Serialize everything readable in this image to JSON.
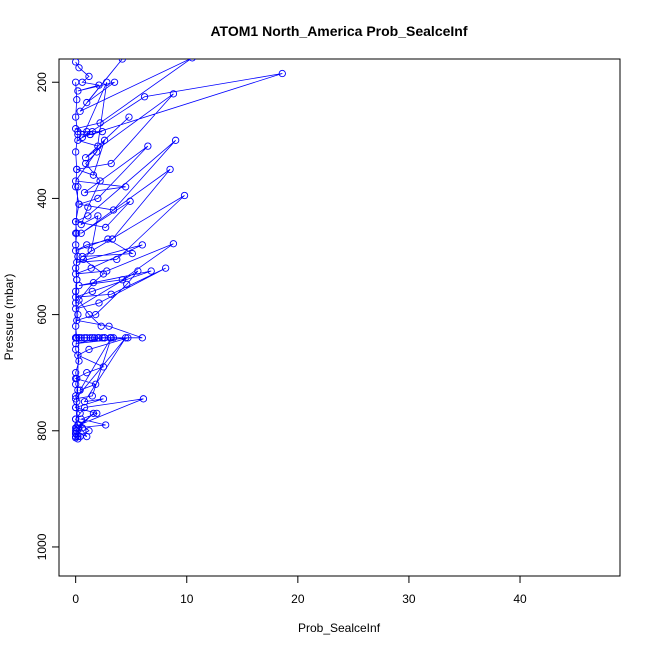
{
  "chart_data": {
    "type": "scatter",
    "title": "ATOM1 North_America Prob_SealceInf",
    "xlabel": "Prob_SealceInf",
    "ylabel": "Pressure (mbar)",
    "xlim": [
      -1.5,
      49
    ],
    "ylim": [
      1050,
      160
    ],
    "y_reversed": true,
    "x_ticks": [
      0,
      10,
      20,
      30,
      40
    ],
    "y_ticks": [
      200,
      400,
      600,
      800,
      1000
    ],
    "grid": false,
    "legend": "none",
    "color": "#0000ff",
    "marker": "open-circle",
    "connected": true,
    "series": [
      {
        "x": [
          0.0,
          0.3,
          1.2,
          0.6,
          2.1,
          0.2,
          3.5,
          1.0,
          4.2,
          0.4,
          10.5,
          2.2,
          0.0,
          1.3,
          18.6,
          6.2,
          0.2,
          2.0,
          4.8,
          0.9,
          8.8,
          3.2,
          0.1,
          1.6,
          2.6,
          0.0,
          4.5,
          0.8,
          6.5,
          2.0,
          0.3,
          3.4,
          9.0,
          1.1,
          0.0,
          2.7,
          4.9,
          0.5,
          8.5,
          3.3,
          1.0,
          0.0,
          2.9,
          5.1,
          0.6,
          9.8,
          3.7,
          0.1,
          6.0,
          1.4,
          0.0,
          2.8,
          8.8,
          4.2,
          0.3,
          6.8,
          1.5,
          0.0,
          3.2,
          8.1,
          2.1,
          0.0,
          5.6,
          4.6,
          1.8,
          0.1,
          3.0,
          6.0,
          2.4,
          0.0,
          4.7,
          1.2,
          0.2,
          2.5,
          1.0,
          0.0,
          1.8,
          0.4,
          3.2,
          1.5,
          0.0,
          4.5,
          0.8,
          2.5,
          0.0,
          1.9,
          0.5,
          2.7,
          0.1,
          1.6,
          0.0,
          1.0,
          0.3,
          6.1,
          0.8,
          0.0,
          1.2,
          0.2,
          0.6,
          0.0,
          0.4,
          0.0,
          0.2
        ],
        "y": [
          165,
          175,
          190,
          200,
          205,
          215,
          200,
          235,
          160,
          250,
          158,
          270,
          280,
          290,
          185,
          225,
          300,
          310,
          260,
          330,
          220,
          340,
          350,
          360,
          300,
          370,
          380,
          390,
          310,
          400,
          410,
          420,
          300,
          430,
          440,
          450,
          405,
          460,
          350,
          470,
          480,
          490,
          470,
          495,
          500,
          395,
          505,
          510,
          480,
          520,
          530,
          525,
          478,
          540,
          550,
          525,
          560,
          570,
          565,
          520,
          580,
          590,
          525,
          548,
          600,
          610,
          620,
          640,
          640,
          650,
          640,
          660,
          670,
          690,
          700,
          710,
          720,
          730,
          640,
          740,
          745,
          640,
          750,
          745,
          760,
          770,
          780,
          790,
          795,
          770,
          800,
          810,
          790,
          745,
          760,
          780,
          800,
          810,
          795,
          805,
          810,
          812,
          814
        ]
      },
      {
        "x": [
          0.0,
          0.1,
          0.0,
          0.2,
          0.0,
          0.1,
          0.0,
          0.3,
          0.0,
          0.1,
          0.0,
          0.2,
          0.0,
          0.1,
          0.0,
          0.0,
          0.2,
          0.0,
          0.1,
          0.0,
          0.3,
          0.0,
          0.1,
          0.0,
          0.2,
          0.0,
          0.1,
          0.0,
          0.4,
          0.0,
          0.2,
          0.0,
          0.1,
          0.0,
          0.0,
          0.3,
          0.0,
          0.1,
          0.0,
          0.2
        ],
        "y": [
          200,
          230,
          260,
          290,
          320,
          350,
          380,
          410,
          440,
          460,
          480,
          500,
          520,
          540,
          560,
          580,
          600,
          620,
          640,
          660,
          680,
          700,
          710,
          720,
          730,
          740,
          750,
          760,
          770,
          780,
          790,
          795,
          800,
          805,
          810,
          640,
          640,
          540,
          460,
          380
        ]
      },
      {
        "x": [
          0.0,
          0.3,
          0.8,
          1.3,
          1.7,
          2.1,
          2.6,
          3.1,
          3.4,
          2.6,
          2.0,
          1.5,
          1.0,
          0.5,
          0.0
        ],
        "y": [
          640,
          640,
          640,
          640,
          640,
          640,
          640,
          640,
          640,
          640,
          640,
          640,
          640,
          640,
          640
        ]
      },
      {
        "x": [
          0.2,
          1.0,
          1.5,
          2.4,
          1.3,
          0.6,
          2.8,
          1.9,
          0.9,
          2.2,
          1.1,
          0.5,
          2.0,
          1.4,
          0.7,
          2.5,
          1.6,
          0.3,
          1.2,
          2.3
        ],
        "y": [
          285,
          285,
          285,
          285,
          290,
          295,
          200,
          320,
          340,
          370,
          415,
          445,
          430,
          490,
          505,
          530,
          545,
          575,
          600,
          620
        ]
      }
    ]
  }
}
